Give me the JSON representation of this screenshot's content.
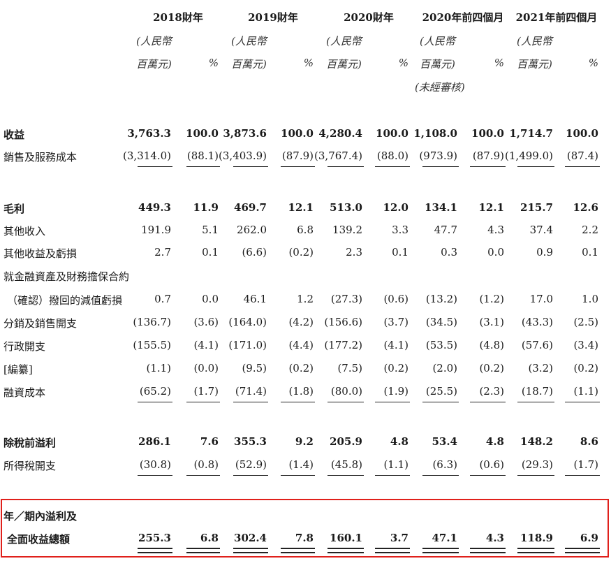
{
  "periods": [
    {
      "label": "2018財年"
    },
    {
      "label": "2019財年"
    },
    {
      "label": "2020財年"
    },
    {
      "label": "2020年前四個月"
    },
    {
      "label": "2021年前四個月"
    }
  ],
  "unit_line1": "(人民幣",
  "unit_line2": "百萬元)",
  "pct_symbol": "%",
  "unaudited_note": "(未經審核)",
  "rows": [
    {
      "label": "收益",
      "bold": true,
      "values": [
        "3,763.3",
        "100.0",
        "3,873.6",
        "100.0",
        "4,280.4",
        "100.0",
        "1,108.0",
        "100.0",
        "1,714.7",
        "100.0"
      ]
    },
    {
      "label": "銷售及服務成本",
      "bold": false,
      "values": [
        "(3,314.0)",
        "(88.1)",
        "(3,403.9)",
        "(87.9)",
        "(3,767.4)",
        "(88.0)",
        "(973.9)",
        "(87.9)",
        "(1,499.0)",
        "(87.4)"
      ]
    },
    {
      "label": "毛利",
      "bold": true,
      "values": [
        "449.3",
        "11.9",
        "469.7",
        "12.1",
        "513.0",
        "12.0",
        "134.1",
        "12.1",
        "215.7",
        "12.6"
      ]
    },
    {
      "label": "其他收入",
      "bold": false,
      "values": [
        "191.9",
        "5.1",
        "262.0",
        "6.8",
        "139.2",
        "3.3",
        "47.7",
        "4.3",
        "37.4",
        "2.2"
      ]
    },
    {
      "label": "其他收益及虧損",
      "bold": false,
      "values": [
        "2.7",
        "0.1",
        "(6.6)",
        "(0.2)",
        "2.3",
        "0.1",
        "0.3",
        "0.0",
        "0.9",
        "0.1"
      ]
    },
    {
      "label": "就金融資產及財務擔保合約",
      "bold": false,
      "values": [
        "",
        "",
        "",
        "",
        "",
        "",
        "",
        "",
        "",
        ""
      ]
    },
    {
      "label": "（確認）撥回的減值虧損",
      "bold": false,
      "values": [
        "0.7",
        "0.0",
        "46.1",
        "1.2",
        "(27.3)",
        "(0.6)",
        "(13.2)",
        "(1.2)",
        "17.0",
        "1.0"
      ]
    },
    {
      "label": "分銷及銷售開支",
      "bold": false,
      "values": [
        "(136.7)",
        "(3.6)",
        "(164.0)",
        "(4.2)",
        "(156.6)",
        "(3.7)",
        "(34.5)",
        "(3.1)",
        "(43.3)",
        "(2.5)"
      ]
    },
    {
      "label": "行政開支",
      "bold": false,
      "values": [
        "(155.5)",
        "(4.1)",
        "(171.0)",
        "(4.4)",
        "(177.2)",
        "(4.1)",
        "(53.5)",
        "(4.8)",
        "(57.6)",
        "(3.4)"
      ]
    },
    {
      "label": "[編纂]",
      "bold": false,
      "values": [
        "(1.1)",
        "(0.0)",
        "(9.5)",
        "(0.2)",
        "(7.5)",
        "(0.2)",
        "(2.0)",
        "(0.2)",
        "(3.2)",
        "(0.2)"
      ]
    },
    {
      "label": "融資成本",
      "bold": false,
      "values": [
        "(65.2)",
        "(1.7)",
        "(71.4)",
        "(1.8)",
        "(80.0)",
        "(1.9)",
        "(25.5)",
        "(2.3)",
        "(18.7)",
        "(1.1)"
      ]
    },
    {
      "label": "除稅前溢利",
      "bold": true,
      "values": [
        "286.1",
        "7.6",
        "355.3",
        "9.2",
        "205.9",
        "4.8",
        "53.4",
        "4.8",
        "148.2",
        "8.6"
      ]
    },
    {
      "label": "所得稅開支",
      "bold": false,
      "values": [
        "(30.8)",
        "(0.8)",
        "(52.9)",
        "(1.4)",
        "(45.8)",
        "(1.1)",
        "(6.3)",
        "(0.6)",
        "(29.3)",
        "(1.7)"
      ]
    },
    {
      "label": "年／期內溢利及",
      "bold": true,
      "values": [
        "",
        "",
        "",
        "",
        "",
        "",
        "",
        "",
        "",
        ""
      ]
    },
    {
      "label": "全面收益總額",
      "bold": true,
      "values": [
        "255.3",
        "6.8",
        "302.4",
        "7.8",
        "160.1",
        "3.7",
        "47.1",
        "4.3",
        "118.9",
        "6.9"
      ]
    }
  ]
}
